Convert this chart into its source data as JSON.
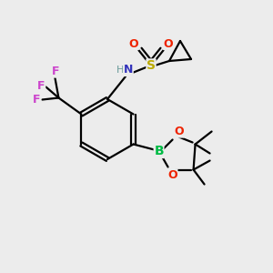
{
  "bg_color": "#ececec",
  "atom_colors": {
    "C": "#000000",
    "H": "#6a9a9a",
    "N": "#3333bb",
    "O": "#ee2200",
    "S": "#bbaa00",
    "B": "#00bb44",
    "F": "#cc44cc"
  }
}
